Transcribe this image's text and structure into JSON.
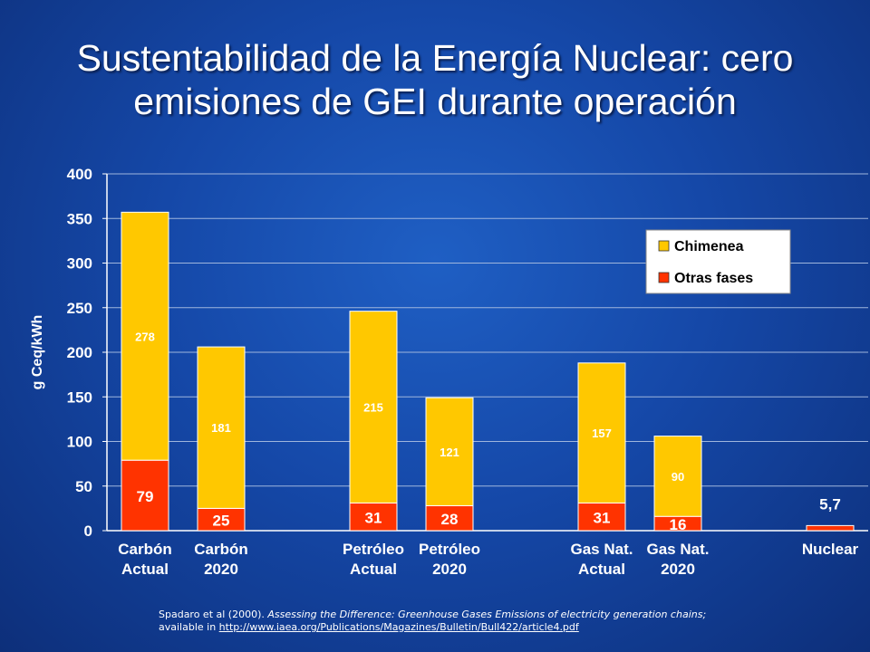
{
  "title": "Sustentabilidad de la Energía Nuclear: cero emisiones de GEI durante operación",
  "colors": {
    "chimenea": "#ffc800",
    "otras_fases": "#ff3300",
    "background": "#1548a8"
  },
  "chart_data": {
    "type": "bar",
    "stacked": true,
    "categories": [
      "Carbón\nActual",
      "Carbón\n2020",
      "",
      "Petróleo\nActual",
      "Petróleo\n2020",
      "",
      "Gas Nat.\nActual",
      "Gas Nat.\n2020",
      "",
      "Nuclear"
    ],
    "series": [
      {
        "name": "Otras fases",
        "color": "#ff3300",
        "values": [
          79,
          25,
          null,
          31,
          28,
          null,
          31,
          16,
          null,
          5.7
        ]
      },
      {
        "name": "Chimenea",
        "color": "#ffc800",
        "values": [
          278,
          181,
          null,
          215,
          121,
          null,
          157,
          90,
          null,
          0
        ]
      }
    ],
    "data_labels": {
      "Otras fases": [
        "79",
        "25",
        "",
        "31",
        "28",
        "",
        "31",
        "16",
        "",
        ""
      ],
      "Chimenea": [
        "278",
        "181",
        "",
        "215",
        "121",
        "",
        "157",
        "90",
        "",
        ""
      ],
      "total": [
        "",
        "",
        "",
        "",
        "",
        "",
        "",
        "",
        "",
        "5,7"
      ]
    },
    "ylabel": "g Ceq/kWh",
    "ylim": [
      0,
      400
    ],
    "yticks": [
      0,
      50,
      100,
      150,
      200,
      250,
      300,
      350,
      400
    ],
    "grid": true,
    "legend_position": "top-right"
  },
  "citation": {
    "line1_prefix": "Spadaro et al (2000). ",
    "line1_italic": "Assessing the Difference: Greenhouse Gases Emissions of electricity generation chains;",
    "line2_prefix": "available in ",
    "link": "http://www.iaea.org/Publications/Magazines/Bulletin/Bull422/article4.pdf"
  }
}
